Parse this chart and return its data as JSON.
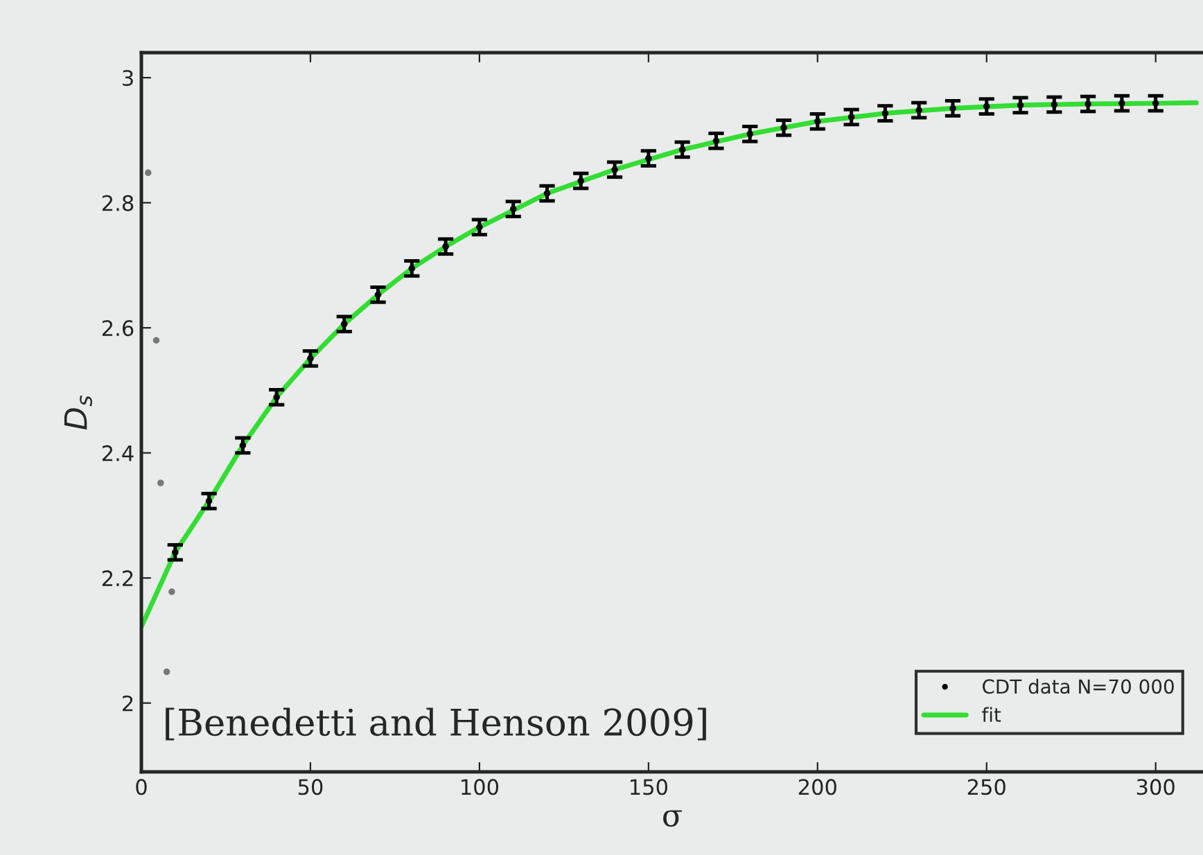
{
  "chart_data": {
    "type": "scatter",
    "xlabel": "σ",
    "ylabel": "D$_{s}$",
    "xlim": [
      0,
      314
    ],
    "ylim": [
      1.89,
      3.04
    ],
    "xticks": [
      0,
      50,
      100,
      150,
      200,
      250,
      300
    ],
    "yticks": [
      2,
      2.2,
      2.4,
      2.6,
      2.8,
      3
    ],
    "grid": false,
    "legend": "bottom right",
    "marker": "circle",
    "annotations": [
      "[Benedetti and Henson 2009]"
    ],
    "series": [
      {
        "name": "CDT data N=70 000",
        "color": "#000000",
        "x": [
          10,
          20,
          30,
          40,
          50,
          60,
          70,
          80,
          90,
          100,
          110,
          120,
          130,
          140,
          150,
          160,
          170,
          180,
          190,
          200,
          210,
          220,
          230,
          240,
          250,
          260,
          270,
          280,
          290,
          300
        ],
        "values": [
          2.241,
          2.323,
          2.412,
          2.489,
          2.551,
          2.606,
          2.653,
          2.695,
          2.73,
          2.761,
          2.79,
          2.815,
          2.835,
          2.853,
          2.871,
          2.885,
          2.899,
          2.91,
          2.92,
          2.93,
          2.937,
          2.943,
          2.948,
          2.951,
          2.954,
          2.956,
          2.957,
          2.958,
          2.959,
          2.959
        ],
        "errors": [
          0.012,
          0.012,
          0.012,
          0.012,
          0.012,
          0.012,
          0.012,
          0.012,
          0.012,
          0.012,
          0.012,
          0.012,
          0.012,
          0.012,
          0.012,
          0.012,
          0.012,
          0.012,
          0.012,
          0.012,
          0.012,
          0.012,
          0.012,
          0.012,
          0.012,
          0.012,
          0.012,
          0.012,
          0.012,
          0.012
        ]
      },
      {
        "color": "#777777",
        "x": [
          2,
          4.4,
          5.7,
          7.5,
          9
        ],
        "values": [
          2.848,
          2.58,
          2.352,
          2.05,
          2.178
        ]
      },
      {
        "name": "fit",
        "type": "line",
        "color": "#33dd33",
        "marker": "none",
        "x": [
          0,
          10,
          20,
          30,
          40,
          50,
          60,
          70,
          80,
          90,
          100,
          120,
          140,
          160,
          180,
          200,
          220,
          240,
          260,
          280,
          300,
          312
        ],
        "values": [
          2.122,
          2.241,
          2.323,
          2.412,
          2.489,
          2.551,
          2.606,
          2.653,
          2.695,
          2.73,
          2.761,
          2.815,
          2.853,
          2.885,
          2.91,
          2.93,
          2.943,
          2.951,
          2.956,
          2.958,
          2.959,
          2.96
        ]
      }
    ]
  }
}
